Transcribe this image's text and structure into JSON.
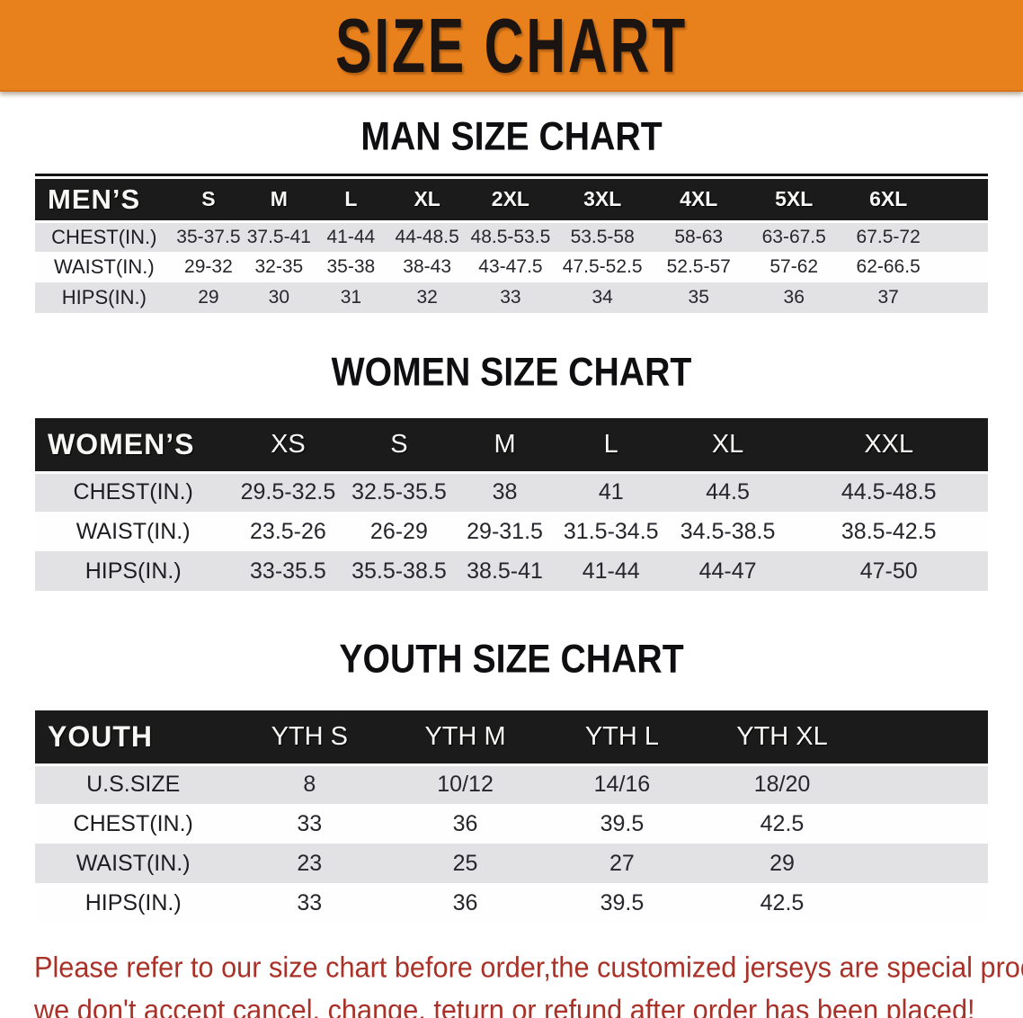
{
  "banner": {
    "title": "SIZE CHART",
    "bg_color": "#E8811C",
    "text_color": "#1C1410"
  },
  "colors": {
    "header_bar_bg": "#1B1B1B",
    "header_bar_text": "#F7F7F5",
    "row_gray": "#E2E2E4",
    "row_white": "#FEFEFE",
    "disclaimer_red": "#A93128"
  },
  "men": {
    "heading": "MAN SIZE CHART",
    "label": "MEN’S",
    "sizes": [
      "S",
      "M",
      "L",
      "XL",
      "2XL",
      "3XL",
      "4XL",
      "5XL",
      "6XL"
    ],
    "rows": [
      {
        "label": "CHEST(IN.)",
        "values": [
          "35-37.5",
          "37.5-41",
          "41-44",
          "44-48.5",
          "48.5-53.5",
          "53.5-58",
          "58-63",
          "63-67.5",
          "67.5-72"
        ]
      },
      {
        "label": "WAIST(IN.)",
        "values": [
          "29-32",
          "32-35",
          "35-38",
          "38-43",
          "43-47.5",
          "47.5-52.5",
          "52.5-57",
          "57-62",
          "62-66.5"
        ]
      },
      {
        "label": "HIPS(IN.)",
        "values": [
          "29",
          "30",
          "31",
          "32",
          "33",
          "34",
          "35",
          "36",
          "37"
        ]
      }
    ]
  },
  "women": {
    "heading": "WOMEN SIZE CHART",
    "label": "WOMEN’S",
    "sizes": [
      "XS",
      "S",
      "M",
      "L",
      "XL",
      "XXL"
    ],
    "rows": [
      {
        "label": "CHEST(IN.)",
        "values": [
          "29.5-32.5",
          "32.5-35.5",
          "38",
          "41",
          "44.5",
          "44.5-48.5"
        ]
      },
      {
        "label": "WAIST(IN.)",
        "values": [
          "23.5-26",
          "26-29",
          "29-31.5",
          "31.5-34.5",
          "34.5-38.5",
          "38.5-42.5"
        ]
      },
      {
        "label": "HIPS(IN.)",
        "values": [
          "33-35.5",
          "35.5-38.5",
          "38.5-41",
          "41-44",
          "44-47",
          "47-50"
        ]
      }
    ]
  },
  "youth": {
    "heading": "YOUTH SIZE CHART",
    "label": "YOUTH",
    "sizes": [
      "YTH S",
      "YTH M",
      "YTH L",
      "YTH XL"
    ],
    "rows": [
      {
        "label": "U.S.SIZE",
        "values": [
          "8",
          "10/12",
          "14/16",
          "18/20"
        ]
      },
      {
        "label": "CHEST(IN.)",
        "values": [
          "33",
          "36",
          "39.5",
          "42.5"
        ]
      },
      {
        "label": "WAIST(IN.)",
        "values": [
          "23",
          "25",
          "27",
          "29"
        ]
      },
      {
        "label": "HIPS(IN.)",
        "values": [
          "33",
          "36",
          "39.5",
          "42.5"
        ]
      }
    ]
  },
  "disclaimer": {
    "line1": "Please refer to our size chart before order,the customized jerseys are special products,",
    "line2": "we don't accept cancel, change, teturn or refund after order has been placed!"
  }
}
